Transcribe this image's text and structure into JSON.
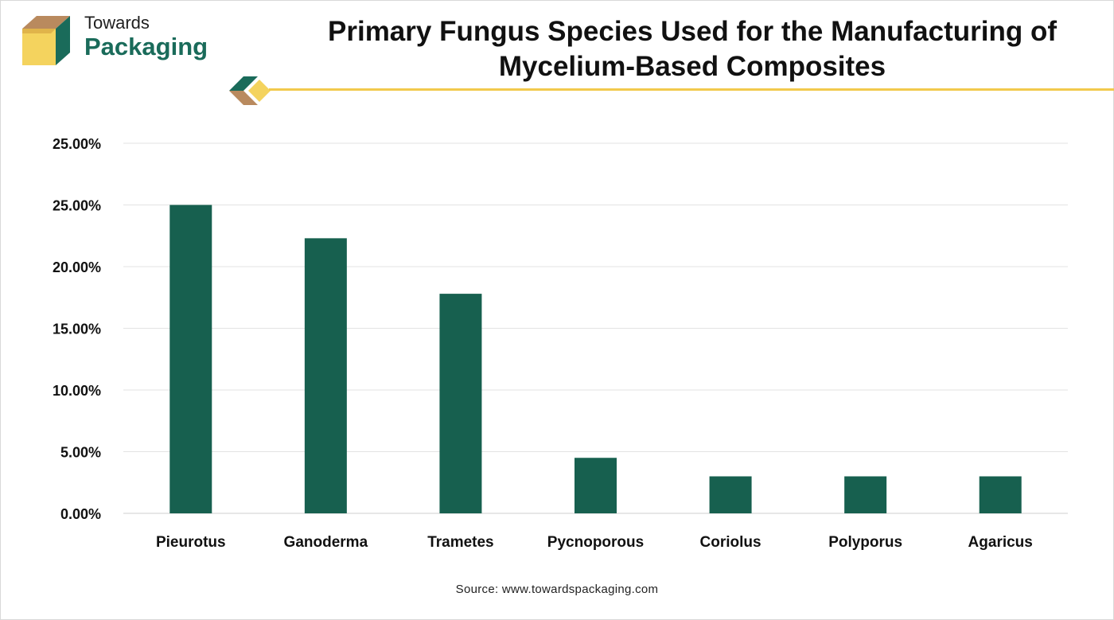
{
  "brand": {
    "name_top": "Towards",
    "name_bottom": "Packaging"
  },
  "colors": {
    "bar": "#17604f",
    "brand_green": "#1a6b5a",
    "accent_yellow": "#f2c94c",
    "gridline": "#e3e3e3"
  },
  "chart_data": {
    "type": "bar",
    "title": "Primary Fungus Species Used for the Manufacturing of Mycelium-Based Composites",
    "xlabel": "",
    "ylabel": "",
    "categories": [
      "Pieurotus",
      "Ganoderma",
      "Trametes",
      "Pycnoporous",
      "Coriolus",
      "Polyporus",
      "Agaricus"
    ],
    "values": [
      25.0,
      22.3,
      17.8,
      4.5,
      3.0,
      3.0,
      3.0
    ],
    "value_unit": "%",
    "y_ticks": [
      "0.00%",
      "5.00%",
      "10.00%",
      "15.00%",
      "20.00%",
      "25.00%",
      "25.00%"
    ],
    "ylim": [
      0,
      30
    ],
    "grid": true,
    "legend": "none"
  },
  "source": "Source: www.towardspackaging.com"
}
